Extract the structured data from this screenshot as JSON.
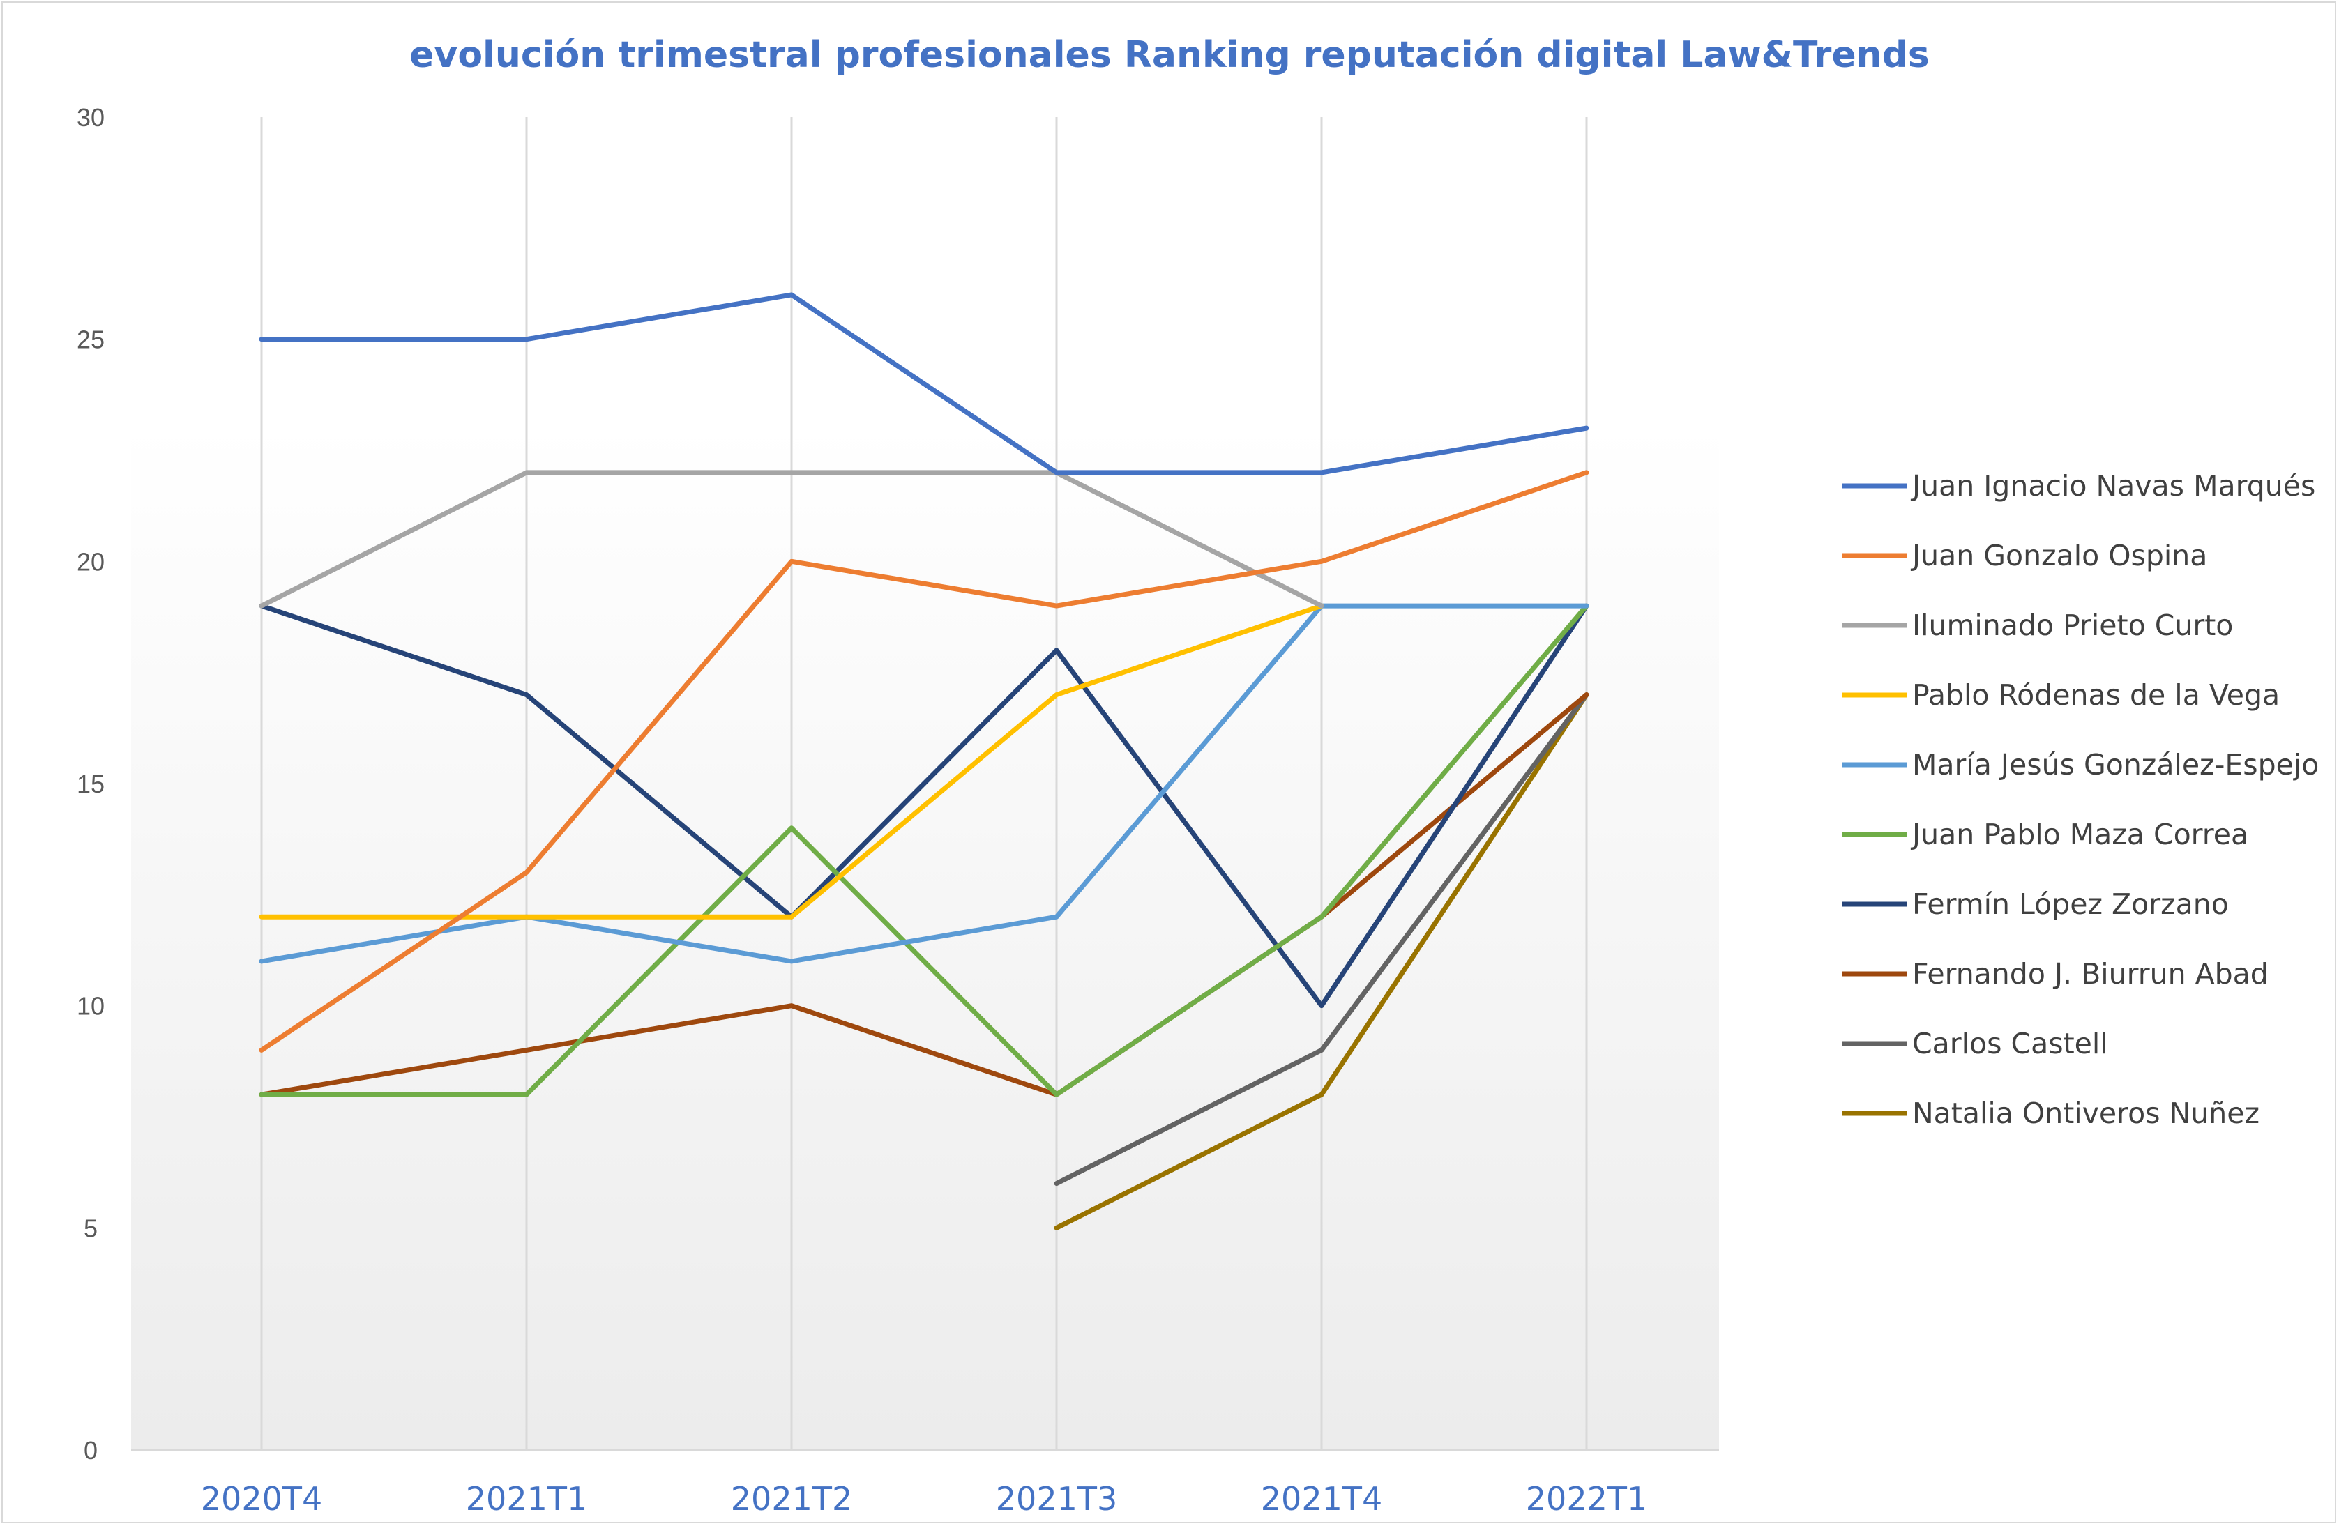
{
  "chart_data": {
    "type": "line",
    "title": "evolución trimestral profesionales Ranking reputación digital Law&Trends",
    "xlabel": "",
    "ylabel": "",
    "categories": [
      "2020T4",
      "2021T1",
      "2021T2",
      "2021T3",
      "2021T4",
      "2022T1"
    ],
    "ylim": [
      0,
      30
    ],
    "yticks": [
      0,
      5,
      10,
      15,
      20,
      25,
      30
    ],
    "grid": "vertical",
    "legend": "right",
    "series": [
      {
        "name": "Juan Ignacio  Navas Marqués",
        "color": "#4472c4",
        "values": [
          25,
          25,
          26,
          22,
          22,
          23
        ]
      },
      {
        "name": "Juan Gonzalo Ospina",
        "color": "#ed7d31",
        "values": [
          9,
          13,
          20,
          19,
          20,
          22
        ]
      },
      {
        "name": "Iluminado  Prieto Curto",
        "color": "#a5a5a5",
        "values": [
          19,
          22,
          22,
          22,
          19,
          null
        ]
      },
      {
        "name": "Pablo  Ródenas de la Vega",
        "color": "#ffc000",
        "values": [
          12,
          12,
          12,
          17,
          19,
          null
        ]
      },
      {
        "name": "María Jesús González-Espejo",
        "color": "#5b9bd5",
        "values": [
          11,
          12,
          11,
          12,
          19,
          19
        ]
      },
      {
        "name": "Juan Pablo Maza Correa",
        "color": "#70ad47",
        "values": [
          8,
          8,
          14,
          8,
          12,
          19
        ]
      },
      {
        "name": "Fermín López Zorzano",
        "color": "#264478",
        "values": [
          19,
          17,
          12,
          18,
          10,
          19
        ]
      },
      {
        "name": "Fernando J. Biurrun Abad",
        "color": "#9e480e",
        "values": [
          8,
          9,
          10,
          8,
          12,
          17
        ]
      },
      {
        "name": "Carlos Castell",
        "color": "#636363",
        "values": [
          null,
          null,
          null,
          6,
          9,
          17
        ]
      },
      {
        "name": "Natalia Ontiveros Nuñez",
        "color": "#997300",
        "values": [
          null,
          null,
          null,
          5,
          8,
          17
        ]
      }
    ]
  }
}
